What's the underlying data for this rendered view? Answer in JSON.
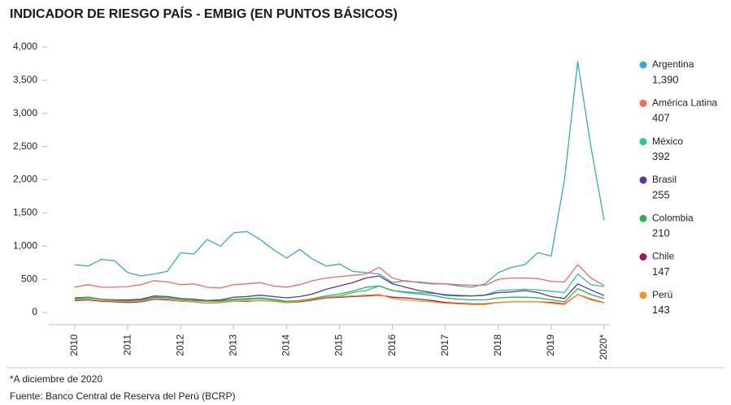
{
  "chart_data": {
    "type": "line",
    "title": "INDICADOR DE RIESGO PAÍS - EMBIG (EN PUNTOS BÁSICOS)",
    "notes": [
      "*A diciembre de 2020",
      "Fuente: Banco Central de Reserva del Perú (BCRP)"
    ],
    "categories": [
      "2010",
      null,
      null,
      null,
      "2011",
      null,
      null,
      null,
      "2012",
      null,
      null,
      null,
      "2013",
      null,
      null,
      null,
      "2014",
      null,
      null,
      null,
      "2015",
      null,
      null,
      null,
      "2016",
      null,
      null,
      null,
      "2017",
      null,
      null,
      null,
      "2018",
      null,
      null,
      null,
      "2019",
      null,
      null,
      null,
      "2020*"
    ],
    "ylim": [
      0,
      4000
    ],
    "yticks": [
      0,
      500,
      {
        "value": 1000,
        "label": "1,000"
      },
      {
        "value": 1500,
        "label": "1,500"
      },
      {
        "value": 2000,
        "label": "2,000"
      },
      {
        "value": 2500,
        "label": "2,500"
      },
      {
        "value": 3000,
        "label": "3,000"
      },
      {
        "value": 3500,
        "label": "3,500"
      },
      {
        "value": 4000,
        "label": "4,000"
      }
    ],
    "grid": false,
    "legend": "right",
    "series": [
      {
        "name": "Argentina",
        "color": "#3aa7c9",
        "latest_label": "1,390",
        "values": [
          720,
          700,
          800,
          780,
          600,
          550,
          580,
          620,
          900,
          880,
          1100,
          1000,
          1200,
          1220,
          1100,
          950,
          820,
          950,
          800,
          700,
          730,
          620,
          600,
          580,
          450,
          480,
          450,
          430,
          430,
          400,
          380,
          430,
          600,
          680,
          720,
          900,
          850,
          2000,
          3780,
          2500,
          1390
        ]
      },
      {
        "name": "América Latina",
        "color": "#f26b5e",
        "latest_label": "407",
        "values": [
          380,
          420,
          380,
          380,
          390,
          420,
          480,
          460,
          420,
          430,
          380,
          370,
          420,
          430,
          450,
          400,
          380,
          420,
          480,
          520,
          540,
          560,
          580,
          680,
          520,
          470,
          460,
          440,
          430,
          420,
          410,
          410,
          500,
          520,
          520,
          510,
          470,
          460,
          720,
          520,
          407
        ]
      },
      {
        "name": "México",
        "color": "#2ec4a0",
        "latest_label": "392",
        "values": [
          200,
          220,
          200,
          190,
          180,
          190,
          230,
          220,
          190,
          180,
          170,
          180,
          200,
          210,
          220,
          200,
          170,
          180,
          200,
          230,
          250,
          300,
          330,
          400,
          330,
          310,
          300,
          290,
          270,
          260,
          250,
          260,
          330,
          340,
          350,
          340,
          320,
          300,
          580,
          420,
          392
        ]
      },
      {
        "name": "Brasil",
        "color": "#5b3a8c",
        "latest_label": "255",
        "values": [
          220,
          230,
          200,
          190,
          190,
          200,
          250,
          240,
          210,
          200,
          180,
          190,
          230,
          240,
          260,
          240,
          220,
          240,
          280,
          350,
          400,
          450,
          520,
          550,
          430,
          380,
          330,
          300,
          260,
          250,
          250,
          260,
          300,
          310,
          330,
          300,
          240,
          210,
          430,
          340,
          255
        ]
      },
      {
        "name": "Colombia",
        "color": "#24b35b",
        "latest_label": "210",
        "values": [
          210,
          230,
          200,
          180,
          170,
          180,
          230,
          220,
          190,
          180,
          170,
          170,
          190,
          200,
          210,
          190,
          160,
          180,
          210,
          250,
          280,
          320,
          380,
          400,
          330,
          300,
          280,
          260,
          220,
          200,
          190,
          190,
          220,
          230,
          230,
          220,
          190,
          160,
          360,
          270,
          210
        ]
      },
      {
        "name": "Chile",
        "color": "#a0145c",
        "latest_label": "147",
        "values": [
          180,
          190,
          170,
          160,
          150,
          160,
          200,
          190,
          170,
          160,
          140,
          150,
          170,
          170,
          180,
          170,
          150,
          160,
          190,
          220,
          230,
          240,
          250,
          260,
          230,
          220,
          200,
          180,
          150,
          140,
          130,
          130,
          150,
          160,
          160,
          160,
          150,
          130,
          270,
          200,
          147
        ]
      },
      {
        "name": "Perú",
        "color": "#f7941d",
        "latest_label": "143",
        "values": [
          190,
          200,
          180,
          170,
          160,
          170,
          210,
          200,
          170,
          160,
          140,
          150,
          170,
          180,
          180,
          170,
          150,
          170,
          200,
          230,
          240,
          250,
          260,
          270,
          210,
          190,
          170,
          160,
          140,
          130,
          120,
          120,
          150,
          160,
          160,
          160,
          140,
          120,
          270,
          190,
          143
        ]
      }
    ]
  }
}
